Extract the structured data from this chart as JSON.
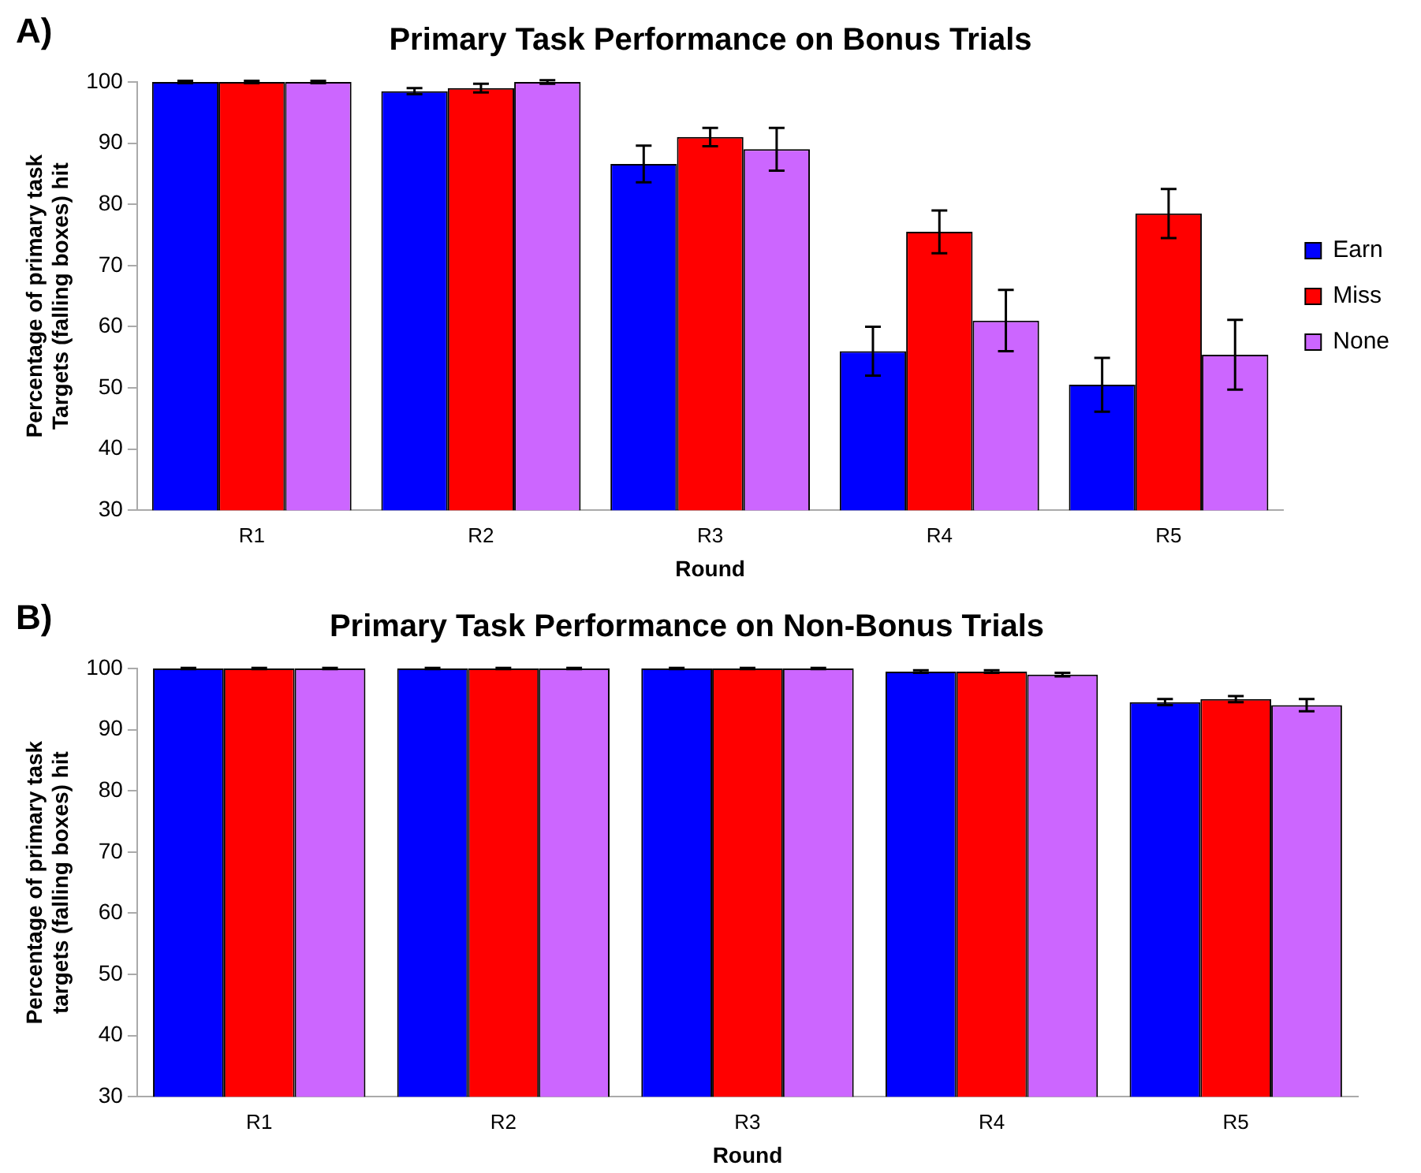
{
  "chart_data": [
    {
      "type": "bar",
      "title": "Primary Task Performance on Bonus Trials",
      "xlabel": "Round",
      "ylabel": "Percentage of primary task Targets (falling boxes) hit",
      "annotations": [
        "A)"
      ],
      "categories": [
        "R1",
        "R2",
        "R3",
        "R4",
        "R5"
      ],
      "series": [
        {
          "name": "Earn",
          "color": "#0000ff",
          "values": [
            100,
            98.5,
            86.6,
            56,
            50.5
          ],
          "errors": [
            0.2,
            0.5,
            3,
            4,
            4.4
          ]
        },
        {
          "name": "Miss",
          "color": "#ff0000",
          "values": [
            100,
            99,
            91,
            75.5,
            78.5
          ],
          "errors": [
            0.2,
            0.7,
            1.5,
            3.5,
            4
          ]
        },
        {
          "name": "None",
          "color": "#cc66ff",
          "values": [
            100,
            100,
            89,
            61,
            55.4
          ],
          "errors": [
            0.2,
            0.3,
            3.5,
            5,
            5.7
          ]
        }
      ],
      "ylim": [
        30,
        100
      ],
      "yticks": [
        30,
        40,
        50,
        60,
        70,
        80,
        90,
        100
      ],
      "grid": false,
      "legend": "right"
    },
    {
      "type": "bar",
      "title": "Primary Task Performance on Non-Bonus Trials",
      "xlabel": "Round",
      "ylabel": "Percentage of primary task targets (falling boxes) hit",
      "annotations": [
        "B)"
      ],
      "categories": [
        "R1",
        "R2",
        "R3",
        "R4",
        "R5"
      ],
      "series": [
        {
          "color": "#0000ff",
          "values": [
            100,
            100,
            100,
            99.5,
            94.5
          ],
          "errors": [
            0.1,
            0.1,
            0.1,
            0.2,
            0.5
          ]
        },
        {
          "color": "#ff0000",
          "values": [
            100,
            100,
            100,
            99.5,
            95
          ],
          "errors": [
            0.1,
            0.1,
            0.1,
            0.2,
            0.5
          ]
        },
        {
          "color": "#cc66ff",
          "values": [
            100,
            100,
            100,
            99,
            94
          ],
          "errors": [
            0.1,
            0.1,
            0.1,
            0.3,
            1
          ]
        }
      ],
      "ylim": [
        30,
        100
      ],
      "yticks": [
        30,
        40,
        50,
        60,
        70,
        80,
        90,
        100
      ],
      "grid": false,
      "legend": false
    }
  ]
}
